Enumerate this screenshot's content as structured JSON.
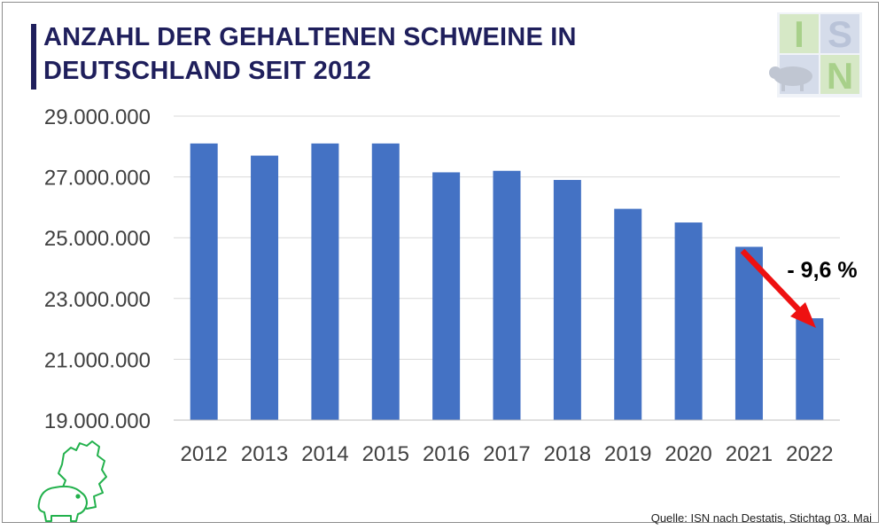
{
  "title": {
    "line1": "ANZAHL DER GEHALTENEN SCHWEINE IN",
    "line2": "DEUTSCHLAND SEIT 2012"
  },
  "logo": {
    "text": "ISN",
    "colors": {
      "light_blue": "#d5dcea",
      "green": "#a8d08a",
      "light_green": "#d6e8c6",
      "pig": "#c0c6d2"
    }
  },
  "annotation": {
    "text": "- 9,6 %",
    "arrow_color": "#ee1111"
  },
  "source": "Quelle: ISN nach Destatis, Stichtag 03. Mai",
  "colors": {
    "bar": "#4472c4",
    "grid": "#d9d9d9",
    "title": "#1f1f5c",
    "germany_pig_icon": "#22b14c"
  },
  "chart_data": {
    "type": "bar",
    "categories": [
      "2012",
      "2013",
      "2014",
      "2015",
      "2016",
      "2017",
      "2018",
      "2019",
      "2020",
      "2021",
      "2022"
    ],
    "values": [
      28100000,
      27700000,
      28100000,
      28100000,
      27150000,
      27200000,
      26900000,
      25950000,
      25500000,
      24700000,
      22350000
    ],
    "ylim": [
      19000000,
      29000000
    ],
    "yticks": [
      19000000,
      21000000,
      23000000,
      25000000,
      27000000,
      29000000
    ],
    "ytick_labels": [
      "19.000.000",
      "21.000.000",
      "23.000.000",
      "25.000.000",
      "27.000.000",
      "29.000.000"
    ],
    "grid": true,
    "legend": "none"
  }
}
